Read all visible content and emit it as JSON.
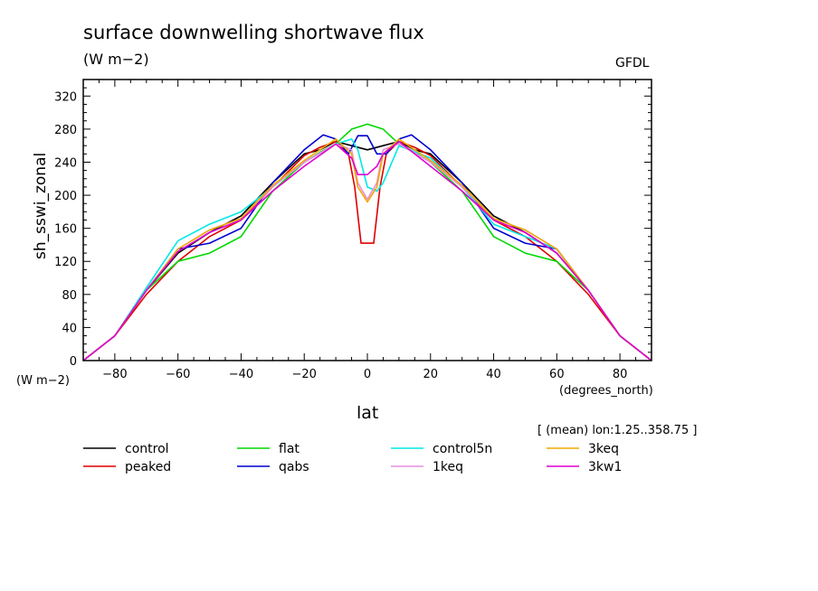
{
  "chart_data": {
    "type": "line",
    "title": "surface downwelling shortwave flux",
    "units": "(W m−2)",
    "source": "GFDL",
    "ylabel": "sh_sswi_zonal",
    "yunit": "(W m−2)",
    "xlabel": "lat",
    "xunit": "(degrees_north)",
    "note": "[ (mean) lon:1.25..358.75 ]",
    "xlim": [
      -90,
      90
    ],
    "ylim": [
      0,
      340
    ],
    "xticks": [
      -80,
      -60,
      -40,
      -20,
      0,
      20,
      40,
      60,
      80
    ],
    "yticks": [
      0,
      40,
      80,
      120,
      160,
      200,
      240,
      280,
      320
    ],
    "grid": false,
    "legend_position": "bottom",
    "series": [
      {
        "name": "control",
        "color": "#000000",
        "x": [
          -90,
          -80,
          -70,
          -60,
          -50,
          -40,
          -30,
          -20,
          -15,
          -10,
          -5,
          0,
          5,
          10,
          15,
          20,
          30,
          40,
          50,
          60,
          70,
          80,
          90
        ],
        "y": [
          0,
          30,
          85,
          130,
          155,
          175,
          215,
          250,
          255,
          265,
          260,
          255,
          260,
          265,
          255,
          250,
          215,
          175,
          155,
          130,
          85,
          30,
          0
        ]
      },
      {
        "name": "peaked",
        "color": "#e00000",
        "x": [
          -90,
          -80,
          -70,
          -60,
          -50,
          -40,
          -30,
          -20,
          -15,
          -10,
          -6,
          -4,
          -2,
          0,
          2,
          4,
          6,
          10,
          15,
          20,
          30,
          40,
          50,
          60,
          70,
          80,
          90
        ],
        "y": [
          0,
          30,
          80,
          120,
          150,
          170,
          210,
          248,
          258,
          265,
          250,
          210,
          142,
          142,
          142,
          210,
          250,
          265,
          258,
          248,
          210,
          170,
          150,
          120,
          80,
          30,
          0
        ]
      },
      {
        "name": "flat",
        "color": "#00d800",
        "x": [
          -90,
          -80,
          -70,
          -60,
          -50,
          -40,
          -30,
          -20,
          -15,
          -10,
          -5,
          0,
          5,
          10,
          15,
          20,
          30,
          40,
          50,
          60,
          70,
          80,
          90
        ],
        "y": [
          0,
          30,
          85,
          120,
          130,
          150,
          205,
          240,
          252,
          262,
          280,
          286,
          280,
          262,
          252,
          240,
          205,
          150,
          130,
          120,
          85,
          30,
          0
        ]
      },
      {
        "name": "qabs",
        "color": "#0000d0",
        "x": [
          -90,
          -80,
          -70,
          -60,
          -50,
          -40,
          -30,
          -20,
          -14,
          -10,
          -6,
          -3,
          0,
          3,
          6,
          10,
          14,
          20,
          30,
          40,
          50,
          60,
          70,
          80,
          90
        ],
        "y": [
          0,
          30,
          85,
          135,
          142,
          160,
          215,
          255,
          273,
          268,
          250,
          272,
          272,
          250,
          250,
          268,
          273,
          255,
          215,
          160,
          142,
          135,
          85,
          30,
          0
        ]
      },
      {
        "name": "control5n",
        "color": "#00e8e8",
        "x": [
          -90,
          -80,
          -70,
          -60,
          -50,
          -40,
          -30,
          -20,
          -10,
          -5,
          -3,
          0,
          3,
          5,
          10,
          20,
          30,
          40,
          50,
          60,
          70,
          80,
          90
        ],
        "y": [
          0,
          30,
          88,
          145,
          165,
          180,
          210,
          240,
          262,
          268,
          255,
          210,
          205,
          215,
          260,
          245,
          210,
          165,
          150,
          135,
          85,
          30,
          0
        ]
      },
      {
        "name": "1keq",
        "color": "#e890e0",
        "x": [
          -90,
          -80,
          -70,
          -60,
          -50,
          -40,
          -30,
          -20,
          -10,
          -5,
          -3,
          0,
          3,
          5,
          10,
          20,
          30,
          40,
          50,
          60,
          70,
          80,
          90
        ],
        "y": [
          0,
          30,
          85,
          135,
          158,
          172,
          210,
          240,
          262,
          255,
          215,
          195,
          215,
          255,
          262,
          240,
          210,
          172,
          158,
          135,
          85,
          30,
          0
        ]
      },
      {
        "name": "3keq",
        "color": "#f0a800",
        "x": [
          -90,
          -80,
          -70,
          -60,
          -50,
          -40,
          -30,
          -20,
          -10,
          -5,
          -3,
          0,
          3,
          5,
          10,
          20,
          30,
          40,
          50,
          60,
          70,
          80,
          90
        ],
        "y": [
          0,
          30,
          85,
          135,
          158,
          172,
          212,
          242,
          268,
          250,
          210,
          192,
          210,
          250,
          268,
          242,
          212,
          172,
          158,
          135,
          85,
          30,
          0
        ]
      },
      {
        "name": "3kw1",
        "color": "#e000d0",
        "x": [
          -90,
          -80,
          -70,
          -60,
          -50,
          -40,
          -30,
          -20,
          -10,
          -5,
          -3,
          0,
          3,
          5,
          10,
          20,
          30,
          40,
          50,
          60,
          70,
          80,
          90
        ],
        "y": [
          0,
          30,
          85,
          132,
          155,
          170,
          205,
          235,
          262,
          245,
          225,
          225,
          235,
          250,
          265,
          235,
          205,
          170,
          155,
          130,
          85,
          30,
          0
        ]
      }
    ]
  }
}
